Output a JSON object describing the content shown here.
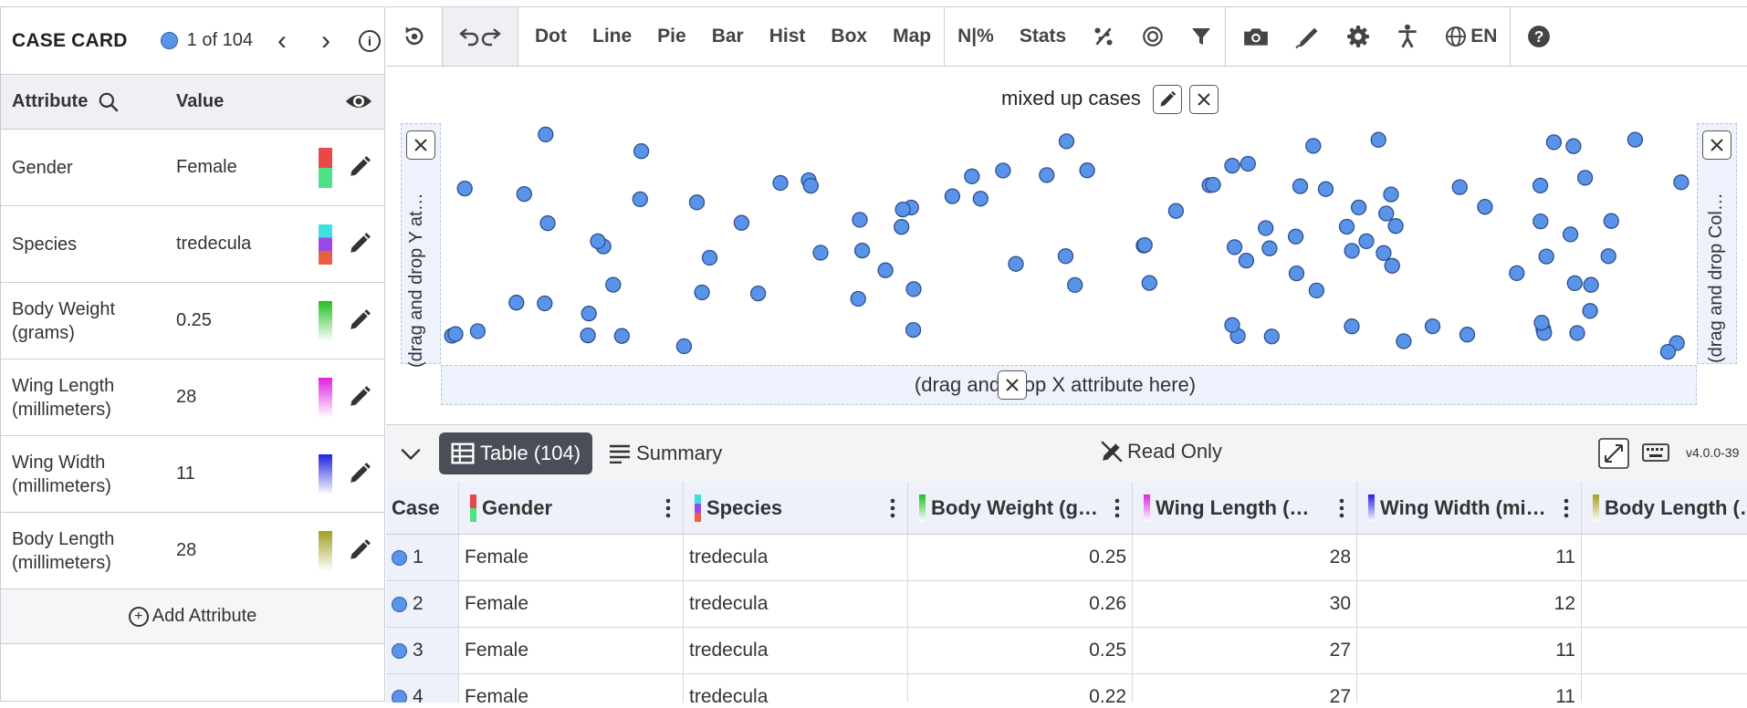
{
  "case_card": {
    "title": "CASE CARD",
    "case_count": "1 of 104",
    "prev": "‹",
    "next": "›",
    "attribute_header": "Attribute",
    "value_header": "Value",
    "attributes": [
      {
        "name": "Gender",
        "value": "Female",
        "swatch_top": "#e84848",
        "swatch_bottom": "#4fe08a"
      },
      {
        "name": "Species",
        "value": "tredecula",
        "swatch_colors": [
          "#3ee0e0",
          "#9b48e8",
          "#e86040"
        ]
      },
      {
        "name": "Body Weight (grams)",
        "value": "0.25",
        "swatch_gradient": [
          "#21c021",
          "#ffffff"
        ]
      },
      {
        "name": "Wing Length (millimeters)",
        "value": "28",
        "swatch_gradient": [
          "#e021e0",
          "#ffffff"
        ]
      },
      {
        "name": "Wing Width (millimeters)",
        "value": "11",
        "swatch_gradient": [
          "#2121e0",
          "#ffffff"
        ]
      },
      {
        "name": "Body Length (millimeters)",
        "value": "28",
        "swatch_gradient": [
          "#a0a021",
          "#ffffff"
        ]
      }
    ],
    "add_attribute": "Add Attribute"
  },
  "toolbar": {
    "plot_types": [
      "Dot",
      "Line",
      "Pie",
      "Bar",
      "Hist",
      "Box",
      "Map"
    ],
    "n_percent": "N|%",
    "stats": "Stats",
    "language": "EN"
  },
  "graph": {
    "title": "mixed up cases",
    "y_drop": "(drag and drop Y at…",
    "x_drop": "(drag and drop X attribute here)",
    "color_drop": "(drag and drop Col…",
    "point_color": "#5a94ea",
    "point_stroke": "#2f4f8a"
  },
  "table": {
    "table_tab": "Table (104)",
    "summary_tab": "Summary",
    "read_only": "Read Only",
    "version": "v4.0.0-39",
    "columns": [
      {
        "name": "Case"
      },
      {
        "name": "Gender",
        "swatch": [
          "#e84848",
          "#4fe08a"
        ]
      },
      {
        "name": "Species",
        "swatch": [
          "#3ee0e0",
          "#9b48e8",
          "#e86040"
        ]
      },
      {
        "name": "Body Weight (g…",
        "swatch": [
          "#21c021",
          "#ffffff"
        ]
      },
      {
        "name": "Wing Length (…",
        "swatch": [
          "#e021e0",
          "#ffffff"
        ]
      },
      {
        "name": "Wing Width (mi…",
        "swatch": [
          "#2121e0",
          "#ffffff"
        ]
      },
      {
        "name": "Body Length (…",
        "swatch": [
          "#a0a021",
          "#ffffff"
        ]
      }
    ],
    "rows": [
      {
        "case": "1",
        "gender": "Female",
        "species": "tredecula",
        "body_weight": "0.25",
        "wing_length": "28",
        "wing_width": "11",
        "body_length": ""
      },
      {
        "case": "2",
        "gender": "Female",
        "species": "tredecula",
        "body_weight": "0.26",
        "wing_length": "30",
        "wing_width": "12",
        "body_length": ""
      },
      {
        "case": "3",
        "gender": "Female",
        "species": "tredecula",
        "body_weight": "0.25",
        "wing_length": "27",
        "wing_width": "11",
        "body_length": ""
      },
      {
        "case": "4",
        "gender": "Female",
        "species": "tredecula",
        "body_weight": "0.22",
        "wing_length": "27",
        "wing_width": "11",
        "body_length": ""
      }
    ]
  }
}
